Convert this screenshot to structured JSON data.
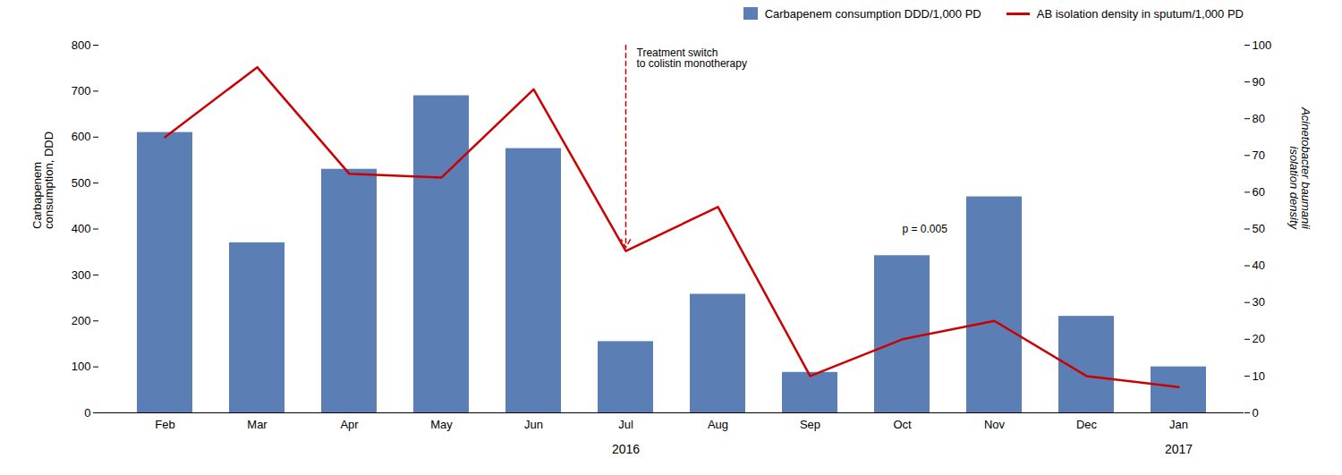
{
  "chart_data": {
    "type": "bar",
    "categories": [
      "Feb",
      "Mar",
      "Apr",
      "May",
      "Jun",
      "Jul",
      "Aug",
      "Sep",
      "Oct",
      "Nov",
      "Dec",
      "Jan"
    ],
    "series": [
      {
        "name": "Carbapenem consumption DDD/1,000 PD",
        "type": "bar",
        "color": "#5b7fb5",
        "values": [
          610,
          370,
          530,
          690,
          575,
          155,
          258,
          88,
          342,
          470,
          210,
          100
        ]
      },
      {
        "name": "AB isolation density in sputum/1,000 PD",
        "type": "line",
        "color": "#cc0000",
        "axis": "y2",
        "values": [
          75,
          94,
          65,
          64,
          88,
          44,
          56,
          10,
          20,
          25,
          10,
          7
        ]
      }
    ],
    "ylabel": "Carbapenem\nconsumption, DDD",
    "y2label": "Acinetobacter baumanii\nisolation density",
    "ylim": [
      0,
      800
    ],
    "yticks": [
      0,
      100,
      200,
      300,
      400,
      500,
      600,
      700,
      800
    ],
    "y2lim": [
      0,
      100
    ],
    "y2ticks": [
      0,
      10,
      20,
      30,
      40,
      50,
      60,
      70,
      80,
      90,
      100
    ],
    "legend": "upper right",
    "annotations": [
      {
        "text": "Treatment switch\nto colistin monotherapy",
        "x": "Jul",
        "arrow": true,
        "color": "#cc0000"
      },
      {
        "text": "p = 0.005",
        "x": "Oct"
      },
      {
        "text": "2016",
        "x": [
          "Feb",
          "Dec"
        ]
      },
      {
        "text": "2017",
        "x": [
          "Jan",
          "Jan"
        ]
      }
    ]
  }
}
